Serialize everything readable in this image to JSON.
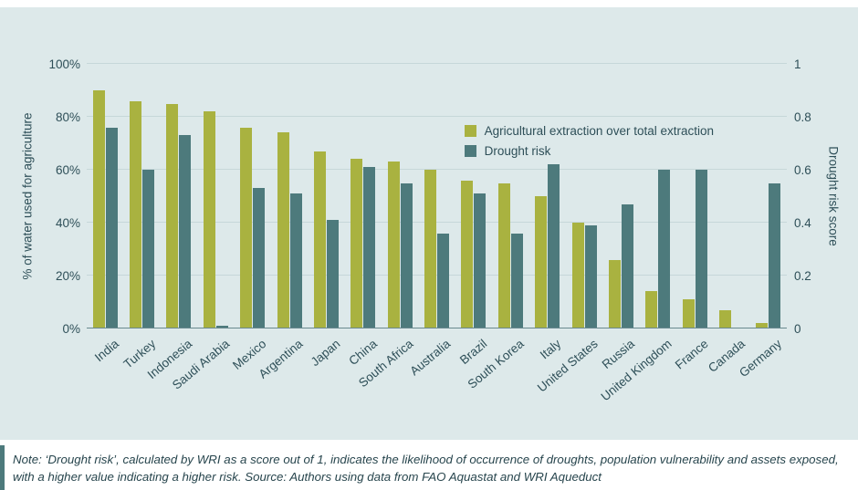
{
  "chart_data": {
    "type": "bar",
    "categories": [
      "India",
      "Turkey",
      "Indonesia",
      "Saudi Arabia",
      "Mexico",
      "Argentina",
      "Japan",
      "China",
      "South Africa",
      "Australia",
      "Brazil",
      "South Korea",
      "Italy",
      "United States",
      "Russia",
      "United Kingdom",
      "France",
      "Canada",
      "Germany"
    ],
    "series": [
      {
        "name": "Agricultural extraction over total extraction",
        "color": "#a9b240",
        "axis": "left",
        "values": [
          90,
          86,
          85,
          82,
          76,
          74,
          67,
          64,
          63,
          60,
          56,
          55,
          50,
          40,
          26,
          14,
          11,
          7,
          2
        ]
      },
      {
        "name": "Drought risk",
        "color": "#4d7a7c",
        "axis": "right",
        "values": [
          0.76,
          0.6,
          0.73,
          0.01,
          0.53,
          0.51,
          0.41,
          0.61,
          0.55,
          0.36,
          0.51,
          0.36,
          0.62,
          0.39,
          0.47,
          0.6,
          0.6,
          0,
          0.55
        ]
      }
    ],
    "left_axis": {
      "label": "% of water used for agriculture",
      "ticks": [
        "0%",
        "20%",
        "40%",
        "60%",
        "80%",
        "100%"
      ],
      "max": 100
    },
    "right_axis": {
      "label": "Drought risk score",
      "ticks": [
        "0",
        "0.2",
        "0.4",
        "0.6",
        "0.8",
        "1"
      ],
      "max": 1
    },
    "legend_position": "top-right",
    "grid": true
  },
  "colors": {
    "panel_background": "#dde9ea",
    "agri_bar": "#a9b240",
    "drought_bar": "#4d7a7c",
    "text": "#2e4f58",
    "gridline": "#c6d7d9",
    "note_accent": "#4d7a7c"
  },
  "note": {
    "text": "Note: ‘Drought risk’, calculated by WRI as a score out of 1, indicates the likelihood of occurrence of droughts, population vulnerability and assets exposed, with a higher value indicating a higher risk. Source: Authors using data from FAO Aquastat and WRI Aqueduct"
  }
}
